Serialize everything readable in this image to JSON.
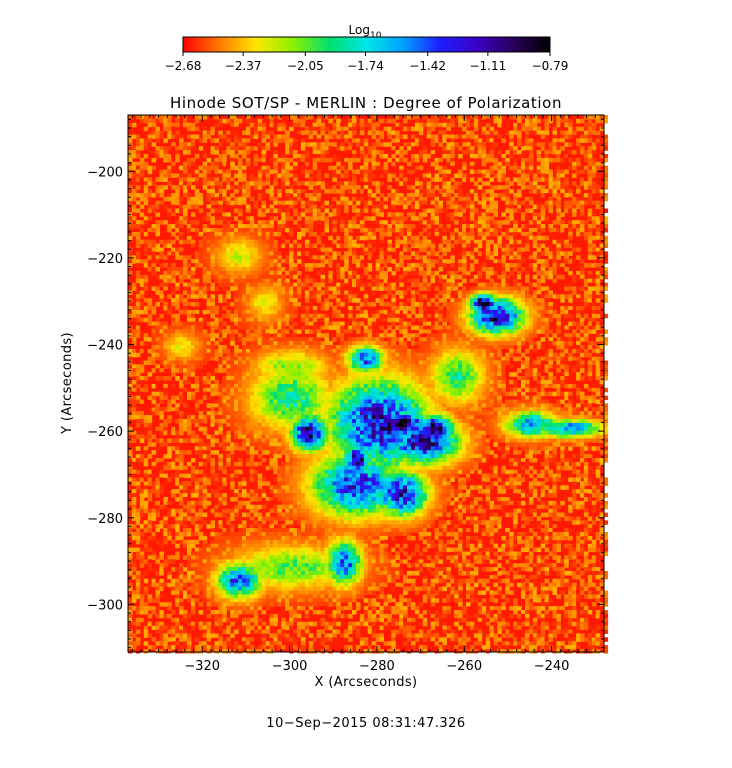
{
  "chart_data": {
    "type": "heatmap",
    "title": "Hinode SOT/SP - MERLIN : Degree of Polarization",
    "xlabel": "X (Arcseconds)",
    "ylabel": "Y (Arcseconds)",
    "xlim": [
      -337,
      -228
    ],
    "ylim": [
      -311,
      -187
    ],
    "x_ticks": [
      -320,
      -300,
      -280,
      -260,
      -240
    ],
    "x_tick_labels": [
      "−320",
      "−300",
      "−280",
      "−260",
      "−240"
    ],
    "y_ticks": [
      -200,
      -220,
      -240,
      -260,
      -280,
      -300
    ],
    "y_tick_labels": [
      "−200",
      "−220",
      "−240",
      "−260",
      "−280",
      "−300"
    ],
    "colorbar": {
      "label": "Log",
      "label_sub": "10",
      "min": -2.68,
      "max": -0.79,
      "tick_values": [
        -2.68,
        -2.37,
        -2.05,
        -1.74,
        -1.42,
        -1.11,
        -0.79
      ],
      "tick_labels": [
        "−2.68",
        "−2.37",
        "−2.05",
        "−1.74",
        "−1.42",
        "−1.11",
        "−0.79"
      ],
      "colormap": [
        "#ff0000",
        "#ff7a00",
        "#ffe600",
        "#8cf000",
        "#00e070",
        "#00e6e6",
        "#00a0ff",
        "#1e1eff",
        "#3c00c8",
        "#28005a",
        "#000000"
      ]
    },
    "background_level": -2.6,
    "structures": [
      {
        "x": -300,
        "y": -252,
        "rx": 9,
        "ry": 7,
        "level": -1.85
      },
      {
        "x": -280,
        "y": -258,
        "rx": 11,
        "ry": 10,
        "level": -1.15
      },
      {
        "x": -270,
        "y": -262,
        "rx": 8,
        "ry": 5,
        "level": -1.05
      },
      {
        "x": -285,
        "y": -272,
        "rx": 10,
        "ry": 7,
        "level": -1.3
      },
      {
        "x": -275,
        "y": -274,
        "rx": 6,
        "ry": 5,
        "level": -1.15
      },
      {
        "x": -296,
        "y": -260,
        "rx": 4,
        "ry": 4,
        "level": -0.95
      },
      {
        "x": -285,
        "y": -266,
        "rx": 3,
        "ry": 3,
        "level": -0.95
      },
      {
        "x": -274,
        "y": -258,
        "rx": 5,
        "ry": 3,
        "level": -0.88
      },
      {
        "x": -267,
        "y": -259,
        "rx": 4,
        "ry": 3,
        "level": -0.9
      },
      {
        "x": -253,
        "y": -233,
        "rx": 6,
        "ry": 4,
        "level": -1.05
      },
      {
        "x": -256,
        "y": -230,
        "rx": 3,
        "ry": 2,
        "level": -0.8
      },
      {
        "x": -262,
        "y": -247,
        "rx": 6,
        "ry": 6,
        "level": -1.9
      },
      {
        "x": -245,
        "y": -258,
        "rx": 6,
        "ry": 3,
        "level": -1.55
      },
      {
        "x": -236,
        "y": -259,
        "rx": 7,
        "ry": 2,
        "level": -1.45
      },
      {
        "x": -300,
        "y": -291,
        "rx": 13,
        "ry": 5,
        "level": -2.0
      },
      {
        "x": -312,
        "y": -294,
        "rx": 5,
        "ry": 4,
        "level": -1.4
      },
      {
        "x": -288,
        "y": -290,
        "rx": 4,
        "ry": 5,
        "level": -1.4
      },
      {
        "x": -300,
        "y": -245,
        "rx": 8,
        "ry": 4,
        "level": -2.05
      },
      {
        "x": -283,
        "y": -243,
        "rx": 4,
        "ry": 3,
        "level": -1.35
      },
      {
        "x": -312,
        "y": -219,
        "rx": 5,
        "ry": 4,
        "level": -2.2
      },
      {
        "x": -306,
        "y": -230,
        "rx": 4,
        "ry": 4,
        "level": -2.25
      },
      {
        "x": -325,
        "y": -240,
        "rx": 4,
        "ry": 3,
        "level": -2.25
      }
    ]
  },
  "footer": {
    "timestamp": "10−Sep−2015 08:31:47.326"
  }
}
